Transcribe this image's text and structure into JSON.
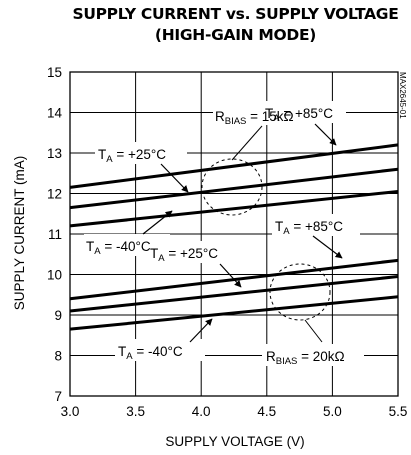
{
  "title_line1": "SUPPLY CURRENT vs. SUPPLY VOLTAGE",
  "title_line2": "(HIGH-GAIN MODE)",
  "part_number": "MAX2645-01",
  "chart_data": {
    "type": "line",
    "xlabel": "SUPPLY VOLTAGE (V)",
    "ylabel": "SUPPLY CURRENT (mA)",
    "xlim": [
      3.0,
      5.5
    ],
    "ylim": [
      7,
      15
    ],
    "xticks": [
      "3.0",
      "3.5",
      "4.0",
      "4.5",
      "5.0",
      "5.5"
    ],
    "yticks": [
      "7",
      "8",
      "9",
      "10",
      "11",
      "12",
      "13",
      "14",
      "15"
    ],
    "grid": true,
    "series": [
      {
        "group": "RBIAS = 15kΩ",
        "temp": "TA = +85°C",
        "x": [
          3.0,
          5.5
        ],
        "y": [
          12.15,
          13.2
        ]
      },
      {
        "group": "RBIAS = 15kΩ",
        "temp": "TA = +25°C",
        "x": [
          3.0,
          5.5
        ],
        "y": [
          11.65,
          12.6
        ]
      },
      {
        "group": "RBIAS = 15kΩ",
        "temp": "TA = -40°C",
        "x": [
          3.0,
          5.5
        ],
        "y": [
          11.2,
          12.05
        ]
      },
      {
        "group": "RBIAS = 20kΩ",
        "temp": "TA = +85°C",
        "x": [
          3.0,
          5.5
        ],
        "y": [
          9.4,
          10.35
        ]
      },
      {
        "group": "RBIAS = 20kΩ",
        "temp": "TA = +25°C",
        "x": [
          3.0,
          5.5
        ],
        "y": [
          9.1,
          9.95
        ]
      },
      {
        "group": "RBIAS = 20kΩ",
        "temp": "TA = -40°C",
        "x": [
          3.0,
          5.5
        ],
        "y": [
          8.65,
          9.45
        ]
      }
    ],
    "annotations": {
      "rbias15": {
        "pre": "R",
        "sub": "BIAS",
        "post": " = 15kΩ"
      },
      "rbias20": {
        "pre": "R",
        "sub": "BIAS",
        "post": " = 20kΩ"
      },
      "ta85_upper": {
        "pre": "T",
        "sub": "A",
        "post": " = +85°C"
      },
      "ta25_upper": {
        "pre": "T",
        "sub": "A",
        "post": " = +25°C"
      },
      "ta40_upper": {
        "pre": "T",
        "sub": "A",
        "post": " = -40°C"
      },
      "ta85_lower": {
        "pre": "T",
        "sub": "A",
        "post": " = +85°C"
      },
      "ta25_lower": {
        "pre": "T",
        "sub": "A",
        "post": " = +25°C"
      },
      "ta40_lower": {
        "pre": "T",
        "sub": "A",
        "post": " = -40°C"
      }
    }
  }
}
